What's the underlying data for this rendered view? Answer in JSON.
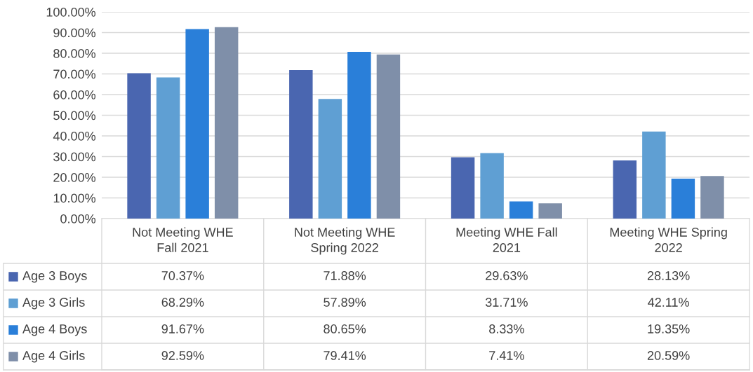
{
  "chart_data": {
    "type": "bar",
    "categories": [
      "Not Meeting WHE\nFall 2021",
      "Not Meeting WHE\nSpring 2022",
      "Meeting WHE Fall\n2021",
      "Meeting WHE Spring\n2022"
    ],
    "series": [
      {
        "name": "Age 3 Boys",
        "color": "#4a66b0",
        "values": [
          70.37,
          71.88,
          29.63,
          28.13
        ],
        "value_labels": [
          "70.37%",
          "71.88%",
          "29.63%",
          "28.13%"
        ]
      },
      {
        "name": "Age 3 Girls",
        "color": "#5f9fd3",
        "values": [
          68.29,
          57.89,
          31.71,
          42.11
        ],
        "value_labels": [
          "68.29%",
          "57.89%",
          "31.71%",
          "42.11%"
        ]
      },
      {
        "name": "Age 4 Boys",
        "color": "#2a7fd9",
        "values": [
          91.67,
          80.65,
          8.33,
          19.35
        ],
        "value_labels": [
          "91.67%",
          "80.65%",
          "8.33%",
          "19.35%"
        ]
      },
      {
        "name": "Age 4 Girls",
        "color": "#7f8fa9",
        "values": [
          92.59,
          79.41,
          7.41,
          20.59
        ],
        "value_labels": [
          "92.59%",
          "79.41%",
          "7.41%",
          "20.59%"
        ]
      }
    ],
    "ylim": [
      0,
      100
    ],
    "yticks": [
      {
        "value": 0,
        "label": "0.00%"
      },
      {
        "value": 10,
        "label": "10.00%"
      },
      {
        "value": 20,
        "label": "20.00%"
      },
      {
        "value": 30,
        "label": "30.00%"
      },
      {
        "value": 40,
        "label": "40.00%"
      },
      {
        "value": 50,
        "label": "50.00%"
      },
      {
        "value": 60,
        "label": "60.00%"
      },
      {
        "value": 70,
        "label": "70.00%"
      },
      {
        "value": 80,
        "label": "80.00%"
      },
      {
        "value": 90,
        "label": "90.00%"
      },
      {
        "value": 100,
        "label": "100.00%"
      }
    ],
    "grid": "y",
    "legend": "bottom left"
  }
}
